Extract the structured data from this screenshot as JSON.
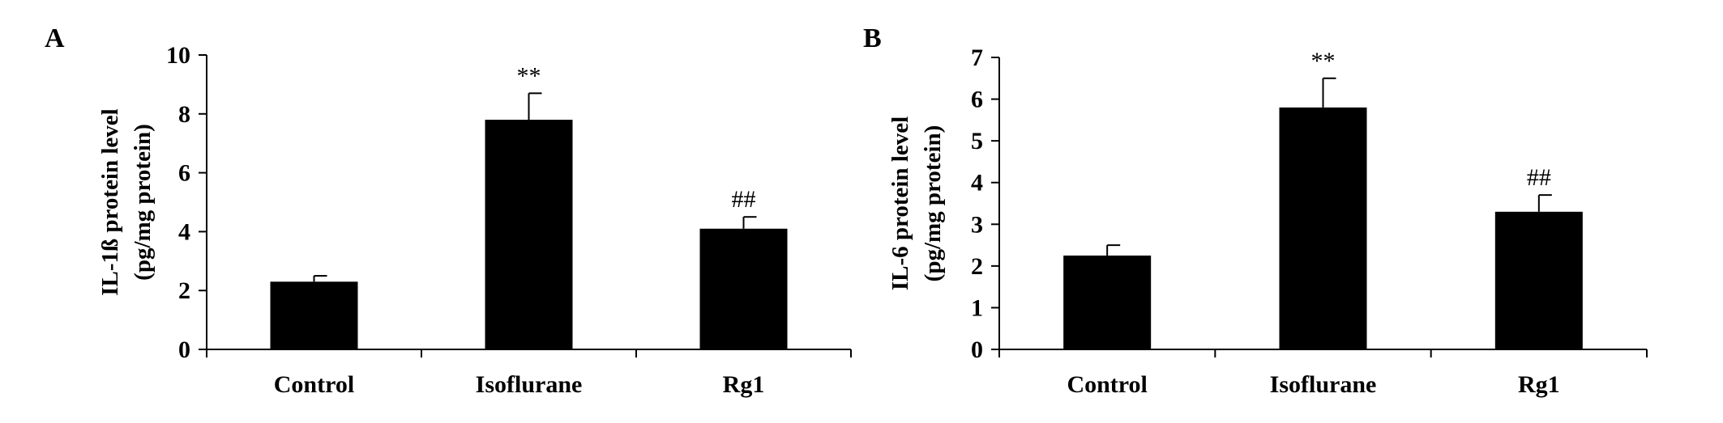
{
  "chart_data": [
    {
      "panel": "A",
      "type": "bar",
      "categories": [
        "Control",
        "Isoflurane",
        "Rg1"
      ],
      "values": [
        2.3,
        7.8,
        4.1
      ],
      "errors": [
        0.2,
        0.9,
        0.4
      ],
      "annotations": [
        "",
        "**",
        "##"
      ],
      "ylabel_line1": "IL-1ß protein level",
      "ylabel_line2": "(pg/mg protein)",
      "ylim": [
        0,
        10
      ],
      "yticks": [
        0,
        2,
        4,
        6,
        8,
        10
      ],
      "bar_color": "#000000"
    },
    {
      "panel": "B",
      "type": "bar",
      "categories": [
        "Control",
        "Isoflurane",
        "Rg1"
      ],
      "values": [
        2.25,
        5.8,
        3.3
      ],
      "errors": [
        0.25,
        0.7,
        0.4
      ],
      "annotations": [
        "",
        "**",
        "##"
      ],
      "ylabel_line1": "IL-6 protein level",
      "ylabel_line2": "(pg/mg protein)",
      "ylim": [
        0,
        7
      ],
      "yticks": [
        0,
        1,
        2,
        3,
        4,
        5,
        6,
        7
      ],
      "bar_color": "#000000"
    }
  ]
}
